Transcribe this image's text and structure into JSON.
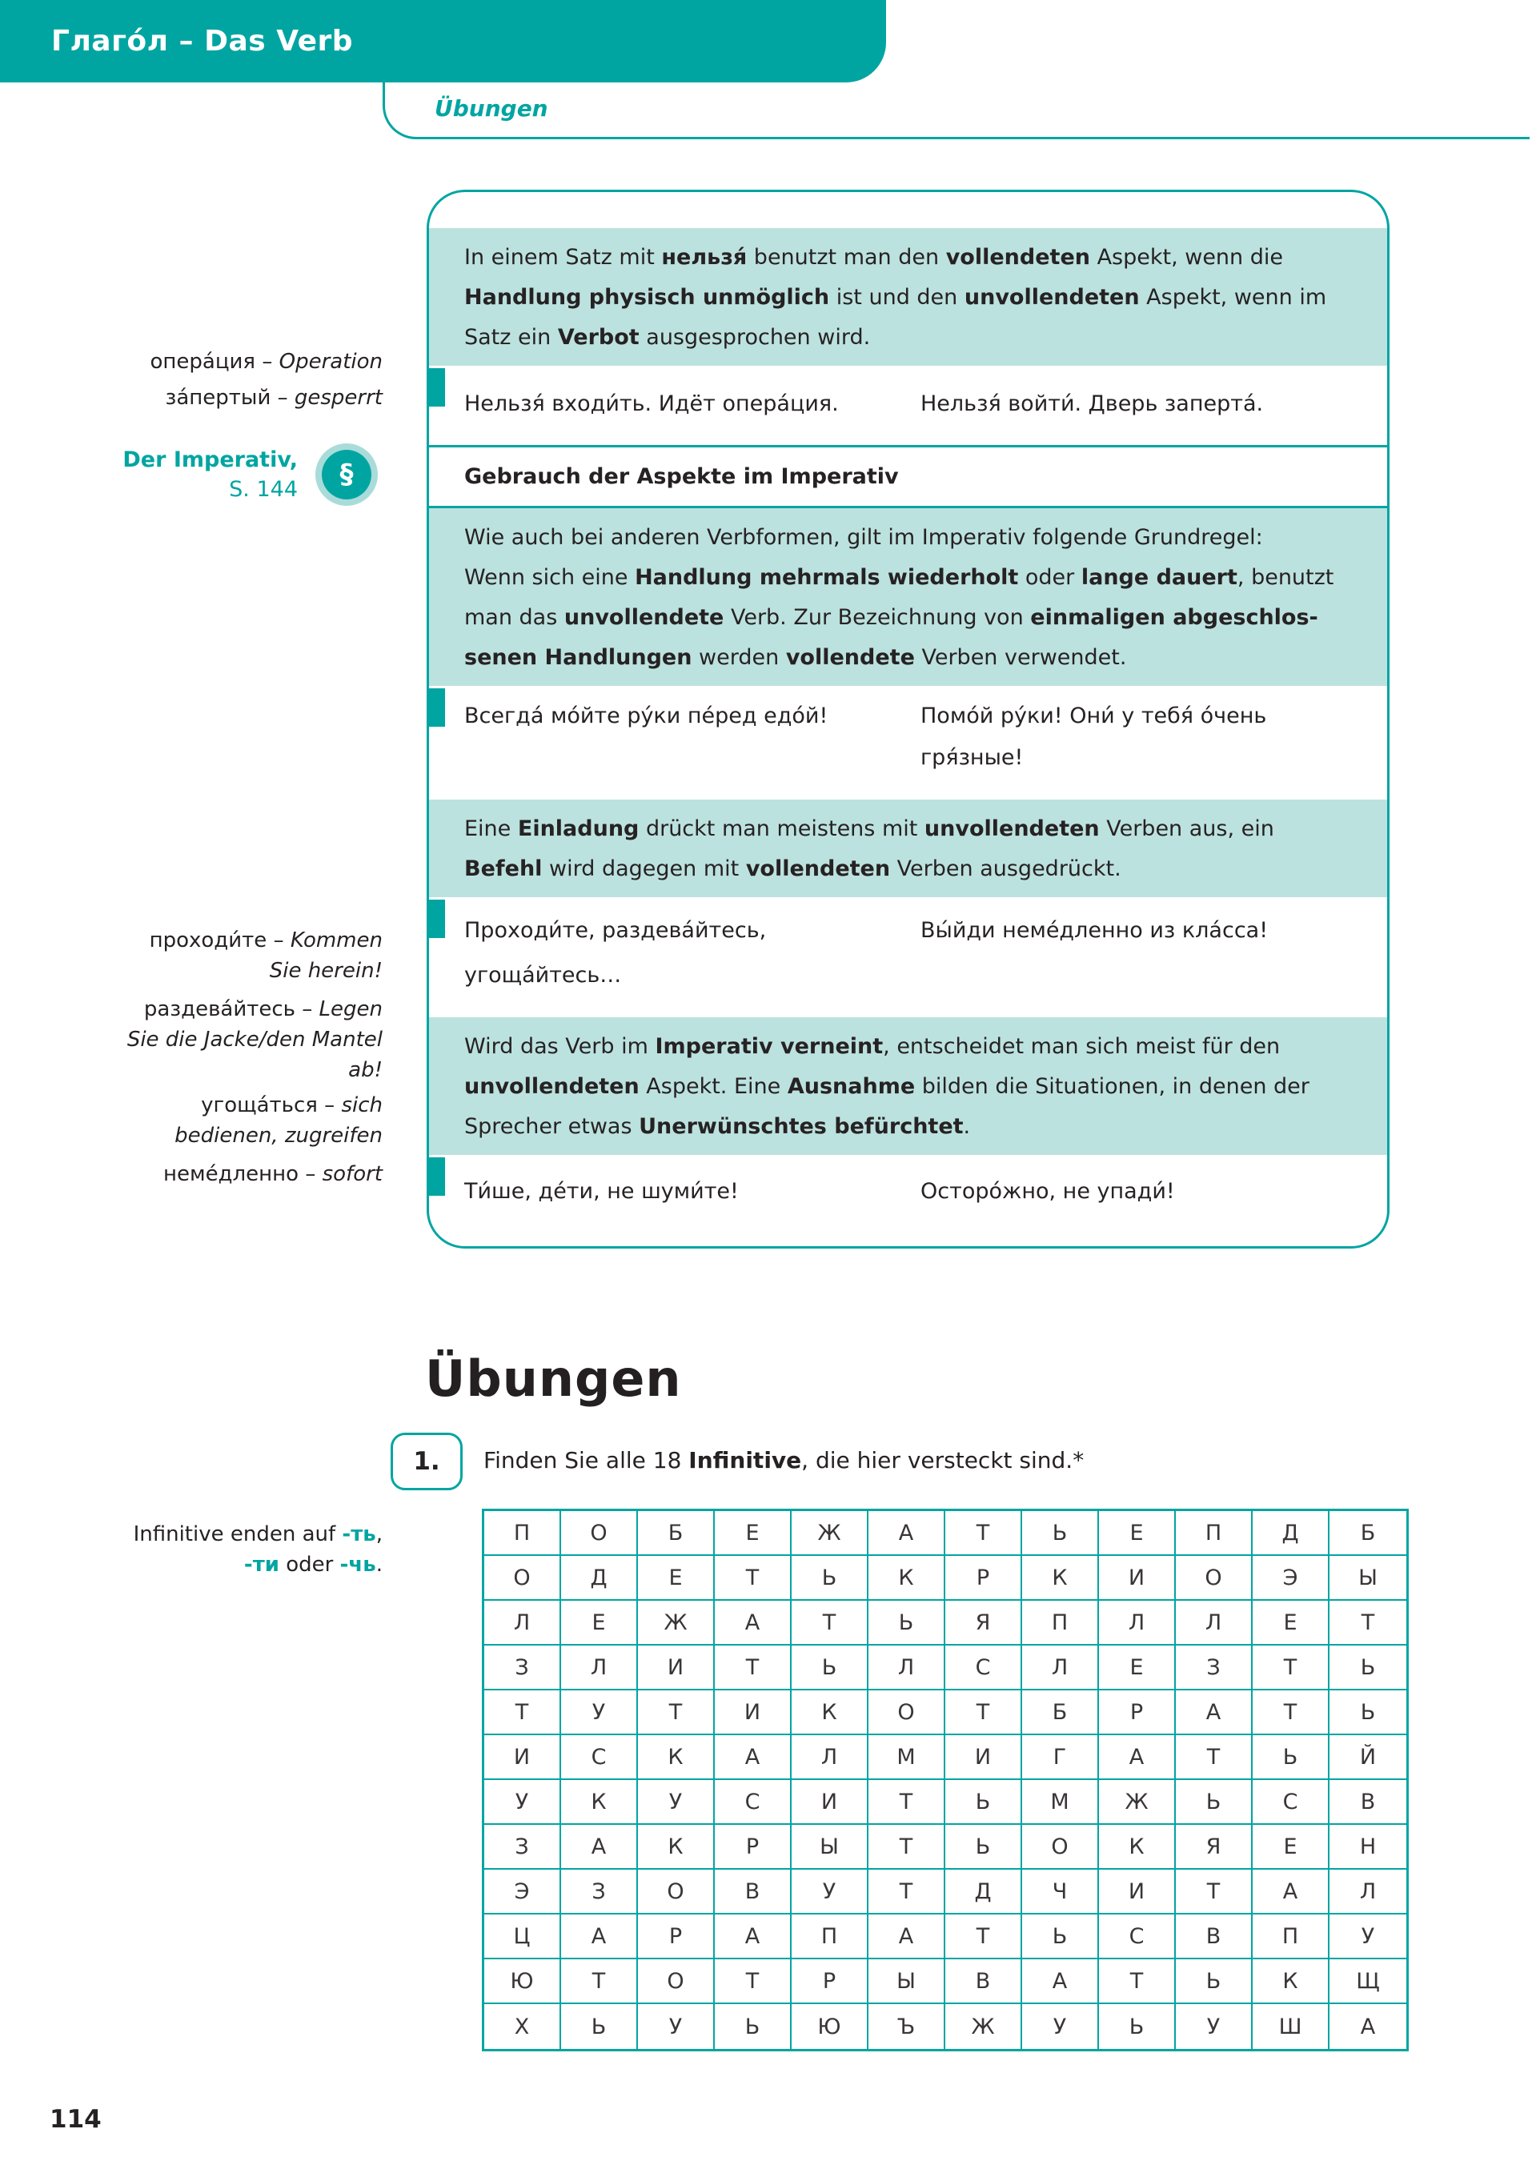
{
  "colors": {
    "teal": "#00a5a2",
    "teal_light": "#bce2df",
    "teal_ring": "#a9dcd9",
    "ink": "#262223",
    "grid_ink": "#3a3637"
  },
  "header": {
    "title": "Глаго́л – Das Verb",
    "tab_label": "Übungen"
  },
  "page": {
    "number": "114"
  },
  "imperativ_ref": {
    "line1": "Der Imperativ,",
    "line2": "S. 144",
    "symbol": "§"
  },
  "margin_notes": {
    "operacija": [
      [
        {
          "t": "опера́ция – "
        },
        {
          "t": "Operation",
          "i": 1
        }
      ]
    ],
    "zapertyj": [
      [
        {
          "t": "за́пертый – "
        },
        {
          "t": "gesperrt",
          "i": 1
        }
      ]
    ],
    "prohodite": [
      [
        {
          "t": "проходи́те – "
        },
        {
          "t": "Kommen",
          "i": 1
        }
      ],
      [
        {
          "t": "Sie herein!",
          "i": 1
        }
      ]
    ],
    "razdevajtes": [
      [
        {
          "t": "раздева́йтесь – "
        },
        {
          "t": "Legen",
          "i": 1
        }
      ],
      [
        {
          "t": "Sie die Jacke/den Mantel",
          "i": 1
        }
      ],
      [
        {
          "t": "ab!",
          "i": 1
        }
      ]
    ],
    "ugoschatsja": [
      [
        {
          "t": "угоща́ться – "
        },
        {
          "t": "sich",
          "i": 1
        }
      ],
      [
        {
          "t": "bedienen, zugreifen",
          "i": 1
        }
      ]
    ],
    "nemedlenno": [
      [
        {
          "t": "неме́дленно – "
        },
        {
          "t": "sofort",
          "i": 1
        }
      ]
    ],
    "infinitive": [
      [
        {
          "t": "Infinitive enden auf "
        },
        {
          "t": "-ть",
          "hl": 1
        },
        {
          "t": ","
        }
      ],
      [
        {
          "t": "-ти",
          "hl": 1
        },
        {
          "t": " oder "
        },
        {
          "t": "-чь",
          "hl": 1
        },
        {
          "t": "."
        }
      ]
    ]
  },
  "info_box": {
    "header_row": "Gebrauch der Aspekte im Imperativ",
    "paragraphs": [
      {
        "lines": [
          [
            {
              "t": "In einem Satz mit "
            },
            {
              "t": "нельзя́",
              "b": 1
            },
            {
              "t": " benutzt man den "
            },
            {
              "t": "vollendeten",
              "b": 1
            },
            {
              "t": " Aspekt, wenn die"
            }
          ],
          [
            {
              "t": "Handlung physisch unmöglich",
              "b": 1
            },
            {
              "t": " ist und den "
            },
            {
              "t": "unvollendeten",
              "b": 1
            },
            {
              "t": " Aspekt, wenn im"
            }
          ],
          [
            {
              "t": "Satz ein "
            },
            {
              "t": "Verbot",
              "b": 1
            },
            {
              "t": " ausgesprochen wird."
            }
          ]
        ]
      },
      {
        "lines": [
          [
            {
              "t": "Wie auch bei anderen Verbformen, gilt im Imperativ folgende Grundregel:"
            }
          ],
          [
            {
              "t": "Wenn sich eine "
            },
            {
              "t": "Handlung mehrmals wiederholt",
              "b": 1
            },
            {
              "t": " oder "
            },
            {
              "t": "lange dauert",
              "b": 1
            },
            {
              "t": ", benutzt"
            }
          ],
          [
            {
              "t": "man das "
            },
            {
              "t": "unvollendete",
              "b": 1
            },
            {
              "t": " Verb. Zur Bezeichnung von "
            },
            {
              "t": "einmaligen abgeschlos-",
              "b": 1
            }
          ],
          [
            {
              "t": "senen Handlungen",
              "b": 1
            },
            {
              "t": " werden "
            },
            {
              "t": "vollendete",
              "b": 1
            },
            {
              "t": " Verben verwendet."
            }
          ]
        ]
      },
      {
        "lines": [
          [
            {
              "t": "Eine "
            },
            {
              "t": "Einladung",
              "b": 1
            },
            {
              "t": " drückt man meistens mit "
            },
            {
              "t": "unvollendeten",
              "b": 1
            },
            {
              "t": " Verben aus, ein"
            }
          ],
          [
            {
              "t": "Befehl",
              "b": 1
            },
            {
              "t": " wird dagegen mit "
            },
            {
              "t": "vollendeten",
              "b": 1
            },
            {
              "t": " Verben ausgedrückt."
            }
          ]
        ]
      },
      {
        "lines": [
          [
            {
              "t": "Wird das Verb im "
            },
            {
              "t": "Imperativ verneint",
              "b": 1
            },
            {
              "t": ", entscheidet man sich meist für den"
            }
          ],
          [
            {
              "t": "unvollendeten",
              "b": 1
            },
            {
              "t": " Aspekt. Eine "
            },
            {
              "t": "Ausnahme",
              "b": 1
            },
            {
              "t": " bilden die Situationen, in denen der"
            }
          ],
          [
            {
              "t": "Sprecher etwas "
            },
            {
              "t": "Unerwünschtes befürchtet",
              "b": 1
            },
            {
              "t": "."
            }
          ]
        ]
      }
    ],
    "examples": [
      {
        "left": [
          "Нельзя́ входи́ть. Идёт опера́ция."
        ],
        "right": [
          "Нельзя́ войти́. Дверь заперта́."
        ]
      },
      {
        "left": [
          "Всегда́ мо́йте ру́ки пе́ред едо́й!"
        ],
        "right": [
          "Помо́й ру́ки! Они́ у тебя́ о́чень",
          "гря́зные!"
        ]
      },
      {
        "left": [
          "Проходи́те, раздева́йтесь,",
          "угоща́йтесь…"
        ],
        "right": [
          "Вы́йди неме́дленно из кла́сса!"
        ]
      },
      {
        "left": [
          "Ти́ше, де́ти, не шуми́те!"
        ],
        "right": [
          "Осторо́жно, не упади́!"
        ]
      }
    ]
  },
  "exercises": {
    "heading": "Übungen",
    "ex1": {
      "number": "1.",
      "instruction": [
        [
          {
            "t": "Finden Sie alle 18 "
          },
          {
            "t": "Infinitive",
            "b": 1
          },
          {
            "t": ", die hier versteckt sind.*"
          }
        ]
      ]
    }
  },
  "grid": {
    "rows": [
      [
        "П",
        "О",
        "Б",
        "Е",
        "Ж",
        "А",
        "Т",
        "Ь",
        "Е",
        "П",
        "Д",
        "Б"
      ],
      [
        "О",
        "Д",
        "Е",
        "Т",
        "Ь",
        "К",
        "Р",
        "К",
        "И",
        "О",
        "Э",
        "Ы"
      ],
      [
        "Л",
        "Е",
        "Ж",
        "А",
        "Т",
        "Ь",
        "Я",
        "П",
        "Л",
        "Л",
        "Е",
        "Т"
      ],
      [
        "З",
        "Л",
        "И",
        "Т",
        "Ь",
        "Л",
        "С",
        "Л",
        "Е",
        "З",
        "Т",
        "Ь"
      ],
      [
        "Т",
        "У",
        "Т",
        "И",
        "К",
        "О",
        "Т",
        "Б",
        "Р",
        "А",
        "Т",
        "Ь"
      ],
      [
        "И",
        "С",
        "К",
        "А",
        "Л",
        "М",
        "И",
        "Г",
        "А",
        "Т",
        "Ь",
        "Й"
      ],
      [
        "У",
        "К",
        "У",
        "С",
        "И",
        "Т",
        "Ь",
        "М",
        "Ж",
        "Ь",
        "С",
        "В"
      ],
      [
        "З",
        "А",
        "К",
        "Р",
        "Ы",
        "Т",
        "Ь",
        "О",
        "К",
        "Я",
        "Е",
        "Н"
      ],
      [
        "Э",
        "З",
        "О",
        "В",
        "У",
        "Т",
        "Д",
        "Ч",
        "И",
        "Т",
        "А",
        "Л"
      ],
      [
        "Ц",
        "А",
        "Р",
        "А",
        "П",
        "А",
        "Т",
        "Ь",
        "С",
        "В",
        "П",
        "У"
      ],
      [
        "Ю",
        "Т",
        "О",
        "Т",
        "Р",
        "Ы",
        "В",
        "А",
        "Т",
        "Ь",
        "К",
        "Щ"
      ],
      [
        "Х",
        "Ь",
        "У",
        "Ь",
        "Ю",
        "Ъ",
        "Ж",
        "У",
        "Ь",
        "У",
        "Ш",
        "А"
      ]
    ]
  }
}
